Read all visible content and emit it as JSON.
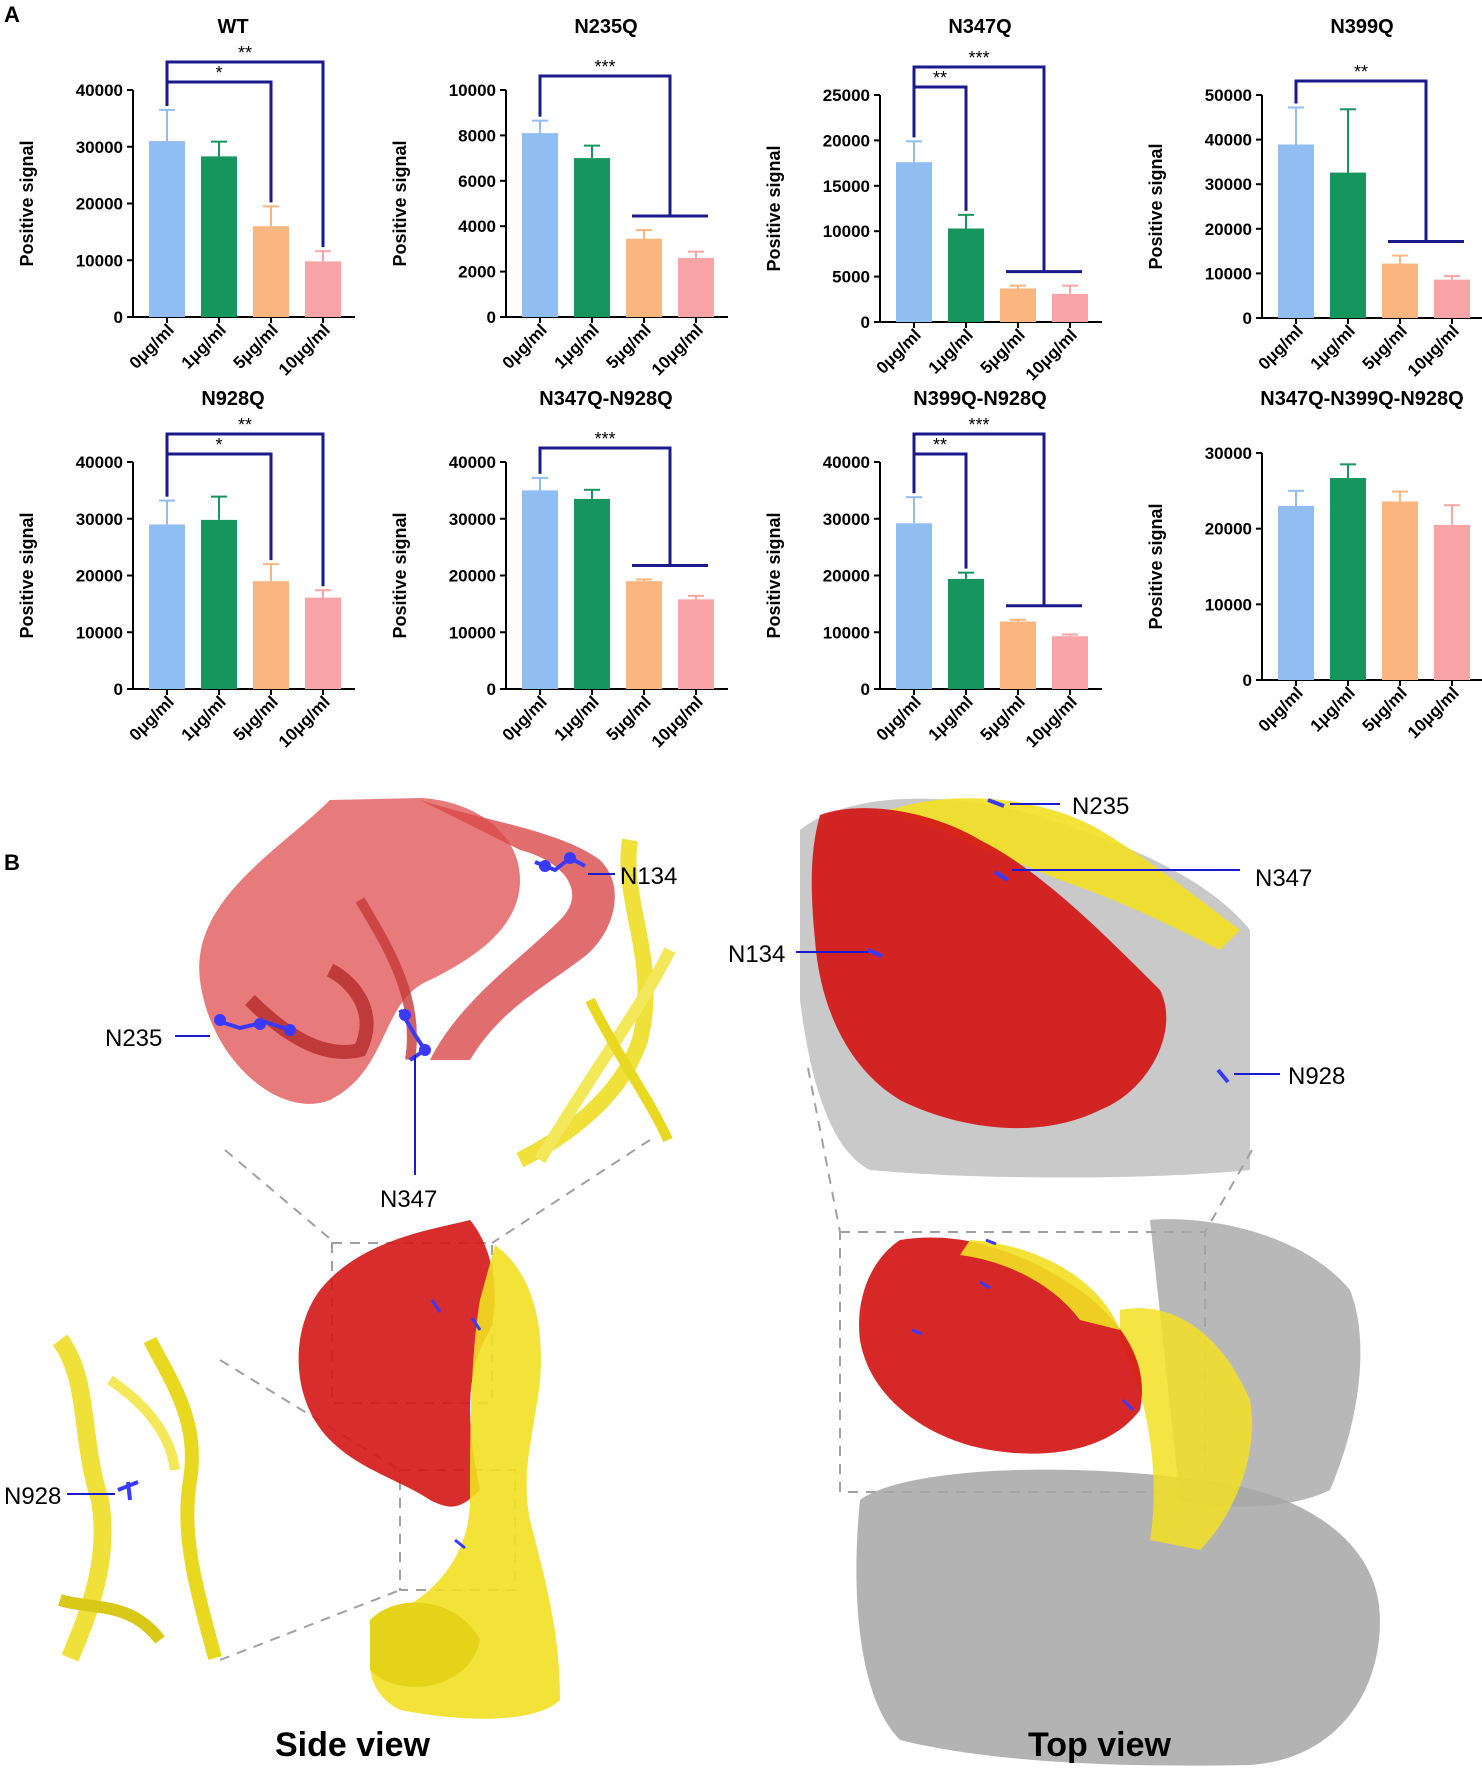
{
  "panels": {
    "a": "A",
    "b": "B"
  },
  "colors": {
    "bars": [
      "#90bdf2",
      "#16955f",
      "#fbb57e",
      "#f9a4a6"
    ],
    "bracket": "#1a1a8c",
    "errorbar": [
      "#90bdf2",
      "#16955f",
      "#fbb57e",
      "#f9a4a6"
    ],
    "structure_red": "#d41616",
    "structure_yellow": "#f2e024",
    "structure_gray": "#a6a6a6",
    "glycan_blue": "#3a3aff"
  },
  "chart_data": [
    {
      "type": "bar",
      "title": "WT",
      "ylabel": "Positive signal",
      "categories": [
        "0μg/ml",
        "1μg/ml",
        "5μg/ml",
        "10μg/ml"
      ],
      "values": [
        31000,
        28300,
        16000,
        9800
      ],
      "errors": [
        5500,
        2600,
        3500,
        1800
      ],
      "yticks": [
        "0",
        "10000",
        "20000",
        "30000",
        "40000"
      ],
      "ylim": [
        0,
        40000
      ],
      "brackets": [
        {
          "from": 0,
          "to": 2,
          "label": "*"
        },
        {
          "from": 0,
          "to": 3,
          "label": "**"
        }
      ]
    },
    {
      "type": "bar",
      "title": "N235Q",
      "ylabel": "Positive signal",
      "categories": [
        "0μg/ml",
        "1μg/ml",
        "5μg/ml",
        "10μg/ml"
      ],
      "values": [
        8100,
        7000,
        3450,
        2600
      ],
      "errors": [
        550,
        550,
        380,
        280
      ],
      "yticks": [
        "0",
        "2000",
        "4000",
        "6000",
        "8000",
        "10000"
      ],
      "ylim": [
        0,
        10000
      ],
      "brackets": [
        {
          "from": 0,
          "to": [
            2,
            3
          ],
          "label": "***"
        }
      ]
    },
    {
      "type": "bar",
      "title": "N347Q",
      "ylabel": "Positive signal",
      "categories": [
        "0μg/ml",
        "1μg/ml",
        "5μg/ml",
        "10μg/ml"
      ],
      "values": [
        17600,
        10300,
        3700,
        3100
      ],
      "errors": [
        2300,
        1500,
        300,
        900
      ],
      "yticks": [
        "0",
        "5000",
        "10000",
        "15000",
        "20000",
        "25000"
      ],
      "ylim": [
        0,
        25000
      ],
      "brackets": [
        {
          "from": 0,
          "to": 1,
          "label": "**"
        },
        {
          "from": 0,
          "to": [
            2,
            3
          ],
          "label": "***"
        }
      ]
    },
    {
      "type": "bar",
      "title": "N399Q",
      "ylabel": "Positive signal",
      "categories": [
        "0μg/ml",
        "1μg/ml",
        "5μg/ml",
        "10μg/ml"
      ],
      "values": [
        38900,
        32600,
        12200,
        8600
      ],
      "errors": [
        8300,
        14200,
        1800,
        800
      ],
      "yticks": [
        "0",
        "10000",
        "20000",
        "30000",
        "40000",
        "50000"
      ],
      "ylim": [
        0,
        50000
      ],
      "brackets": [
        {
          "from": 0,
          "to": [
            2,
            3
          ],
          "label": "**"
        }
      ]
    },
    {
      "type": "bar",
      "title": "N928Q",
      "ylabel": "Positive signal",
      "categories": [
        "0μg/ml",
        "1μg/ml",
        "5μg/ml",
        "10μg/ml"
      ],
      "values": [
        29000,
        29800,
        19000,
        16100
      ],
      "errors": [
        4200,
        4100,
        3000,
        1300
      ],
      "yticks": [
        "0",
        "10000",
        "20000",
        "30000",
        "40000"
      ],
      "ylim": [
        0,
        40000
      ],
      "brackets": [
        {
          "from": 0,
          "to": 2,
          "label": "*"
        },
        {
          "from": 0,
          "to": 3,
          "label": "**"
        }
      ]
    },
    {
      "type": "bar",
      "title": "N347Q-N928Q",
      "ylabel": "Positive signal",
      "categories": [
        "0μg/ml",
        "1μg/ml",
        "5μg/ml",
        "10μg/ml"
      ],
      "values": [
        35000,
        33500,
        19000,
        15800
      ],
      "errors": [
        2200,
        1600,
        300,
        600
      ],
      "yticks": [
        "0",
        "10000",
        "20000",
        "30000",
        "40000"
      ],
      "ylim": [
        0,
        40000
      ],
      "brackets": [
        {
          "from": 0,
          "to": [
            2,
            3
          ],
          "label": "***"
        }
      ]
    },
    {
      "type": "bar",
      "title": "N399Q-N928Q",
      "ylabel": "Positive signal",
      "categories": [
        "0μg/ml",
        "1μg/ml",
        "5μg/ml",
        "10μg/ml"
      ],
      "values": [
        29200,
        19400,
        11900,
        9300
      ],
      "errors": [
        4600,
        1100,
        300,
        300
      ],
      "yticks": [
        "0",
        "10000",
        "20000",
        "30000",
        "40000"
      ],
      "ylim": [
        0,
        40000
      ],
      "brackets": [
        {
          "from": 0,
          "to": 1,
          "label": "**"
        },
        {
          "from": 0,
          "to": [
            2,
            3
          ],
          "label": "***"
        }
      ]
    },
    {
      "type": "bar",
      "title": "N347Q-N399Q-N928Q",
      "ylabel": "Positive signal",
      "categories": [
        "0μg/ml",
        "1μg/ml",
        "5μg/ml",
        "10μg/ml"
      ],
      "values": [
        23000,
        26700,
        23600,
        20500
      ],
      "errors": [
        2000,
        1800,
        1300,
        2600
      ],
      "yticks": [
        "0",
        "10000",
        "20000",
        "30000"
      ],
      "ylim": [
        0,
        30000
      ],
      "brackets": []
    }
  ],
  "structure": {
    "side_view_label": "Side view",
    "top_view_label": "Top view",
    "side_zoom_labels": [
      "N134",
      "N235",
      "N347"
    ],
    "side_inset_label": "N928",
    "top_zoom_labels": [
      "N235",
      "N347",
      "N134",
      "N928"
    ]
  }
}
